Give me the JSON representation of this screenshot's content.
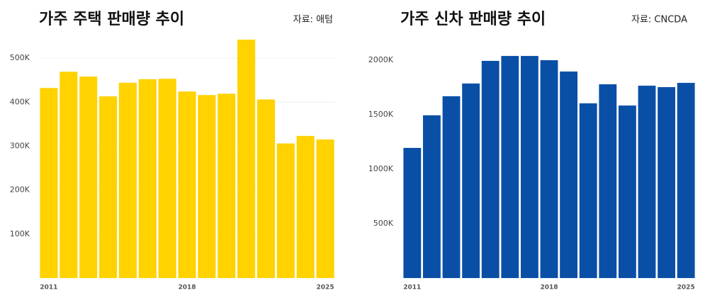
{
  "chart_data": [
    {
      "type": "bar",
      "title": "가주 주택 판매량 추이",
      "source": "자료: 애텀",
      "categories": [
        "2011",
        null,
        null,
        null,
        null,
        null,
        null,
        "2018",
        null,
        null,
        null,
        null,
        null,
        null,
        "2025"
      ],
      "values": [
        432000,
        469000,
        458000,
        413000,
        444000,
        452000,
        453000,
        424000,
        416000,
        419000,
        542000,
        406000,
        306000,
        323000,
        315000
      ],
      "color": "#ffd200",
      "ylim": [
        0,
        550000
      ],
      "yticks": [
        {
          "value": 100000,
          "label": "100K"
        },
        {
          "value": 200000,
          "label": "200K"
        },
        {
          "value": 300000,
          "label": "300K"
        },
        {
          "value": 400000,
          "label": "400K"
        },
        {
          "value": 500000,
          "label": "500K"
        }
      ],
      "grid": true
    },
    {
      "type": "bar",
      "title": "가주 신차 판매량 추이",
      "source": "자료: CNCDA",
      "categories": [
        "2011",
        null,
        null,
        null,
        null,
        null,
        null,
        "2018",
        null,
        null,
        null,
        null,
        null,
        null,
        "2025"
      ],
      "values": [
        1195000,
        1494000,
        1669000,
        1786000,
        1994000,
        2039000,
        2039000,
        2000000,
        1896000,
        1604000,
        1779000,
        1584000,
        1766000,
        1753000,
        1792000
      ],
      "color": "#0a4fa6",
      "ylim": [
        0,
        2150000
      ],
      "yticks": [
        {
          "value": 500000,
          "label": "500K"
        },
        {
          "value": 1000000,
          "label": "1000K"
        },
        {
          "value": 1500000,
          "label": "1500K"
        },
        {
          "value": 2000000,
          "label": "2000K"
        }
      ],
      "grid": false
    }
  ]
}
